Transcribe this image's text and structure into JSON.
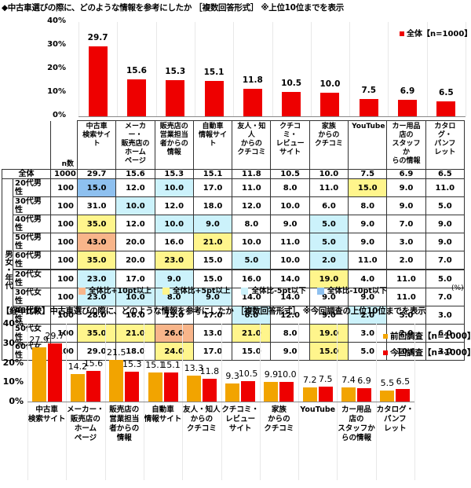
{
  "titles": {
    "top": "◆中古車選びの際に、どのような情報を参考にしたか ［複数回答形式］ ※上位10位までを表示",
    "bottom": "【経年比較】中古車選びの際に、どのような情報を参考にしたか ［複数回答形式］ ※今回調査の上位10位までを表示"
  },
  "colors": {
    "current": "#ee0000",
    "previous": "#f2a400",
    "p10": "#f8b58a",
    "p5": "#fff58c",
    "m5": "#ccf2fb",
    "m10": "#8ec0ef"
  },
  "chart_data": [
    {
      "type": "bar",
      "title": "中古車選びの際に、どのような情報を参考にしたか",
      "categories": [
        "中古車検索サイト",
        "メーカー・販売店のホームページ",
        "販売店の営業担当者からの情報",
        "自動車情報サイト",
        "友人・知人からのクチコミ",
        "クチコミ・レビューサイト",
        "家族からのクチコミ",
        "YouTube",
        "カー用品店のスタッフからの情報",
        "カタログ・パンフレット"
      ],
      "series": [
        {
          "name": "全体【n=1000】",
          "values": [
            29.7,
            15.6,
            15.3,
            15.1,
            11.8,
            10.5,
            10.0,
            7.5,
            6.9,
            6.5
          ]
        }
      ],
      "yticks": [
        "0%",
        "10%",
        "20%",
        "30%",
        "40%"
      ],
      "ylim": [
        0,
        40
      ],
      "legend_position": "top-right",
      "grid": "vertical separators"
    },
    {
      "type": "table",
      "columns": [
        "n数",
        "中古車検索サイト",
        "メーカー・販売店のホームページ",
        "販売店の営業担当者からの情報",
        "自動車情報サイト",
        "友人・知人からのクチコミ",
        "クチコミ・レビューサイト",
        "家族からのクチコミ",
        "YouTube",
        "カー用品店のスタッフからの情報",
        "カタログ・パンフレット"
      ],
      "group_label": "男女・年代",
      "rows": [
        {
          "label": "全体",
          "n": "1000",
          "values": [
            "29.7",
            "15.6",
            "15.3",
            "15.1",
            "11.8",
            "10.5",
            "10.0",
            "7.5",
            "6.9",
            "6.5"
          ],
          "hl": [
            "",
            "",
            "",
            "",
            "",
            "",
            "",
            "",
            "",
            ""
          ]
        },
        {
          "label": "20代男性",
          "n": "100",
          "values": [
            "15.0",
            "12.0",
            "10.0",
            "17.0",
            "11.0",
            "8.0",
            "11.0",
            "15.0",
            "9.0",
            "11.0"
          ],
          "hl": [
            "m10",
            "",
            "m5",
            "",
            "",
            "",
            "",
            "p5",
            "",
            ""
          ]
        },
        {
          "label": "30代男性",
          "n": "100",
          "values": [
            "31.0",
            "10.0",
            "12.0",
            "18.0",
            "12.0",
            "10.0",
            "6.0",
            "8.0",
            "9.0",
            "5.0"
          ],
          "hl": [
            "",
            "m5",
            "",
            "",
            "",
            "",
            "",
            "",
            "",
            ""
          ]
        },
        {
          "label": "40代男性",
          "n": "100",
          "values": [
            "35.0",
            "12.0",
            "10.0",
            "9.0",
            "8.0",
            "9.0",
            "5.0",
            "9.0",
            "7.0",
            "9.0"
          ],
          "hl": [
            "p5",
            "",
            "m5",
            "m5",
            "",
            "",
            "m5",
            "",
            "",
            ""
          ]
        },
        {
          "label": "50代男性",
          "n": "100",
          "values": [
            "43.0",
            "20.0",
            "16.0",
            "21.0",
            "10.0",
            "11.0",
            "5.0",
            "9.0",
            "3.0",
            "9.0"
          ],
          "hl": [
            "p10",
            "",
            "",
            "p5",
            "",
            "",
            "m5",
            "",
            "",
            ""
          ]
        },
        {
          "label": "60代男性",
          "n": "100",
          "values": [
            "35.0",
            "20.0",
            "23.0",
            "15.0",
            "5.0",
            "10.0",
            "2.0",
            "11.0",
            "2.0",
            "7.0"
          ],
          "hl": [
            "p5",
            "",
            "p5",
            "",
            "m5",
            "",
            "m5",
            "",
            "",
            ""
          ]
        },
        {
          "label": "20代女性",
          "n": "100",
          "values": [
            "23.0",
            "17.0",
            "9.0",
            "15.0",
            "16.0",
            "14.0",
            "19.0",
            "4.0",
            "11.0",
            "5.0"
          ],
          "hl": [
            "m5",
            "",
            "m5",
            "",
            "",
            "",
            "p5",
            "",
            "",
            ""
          ]
        },
        {
          "label": "30代女性",
          "n": "100",
          "values": [
            "23.0",
            "10.0",
            "8.0",
            "9.0",
            "14.0",
            "14.0",
            "9.0",
            "9.0",
            "11.0",
            "7.0"
          ],
          "hl": [
            "m5",
            "m5",
            "m5",
            "m5",
            "",
            "",
            "",
            "",
            "",
            ""
          ]
        },
        {
          "label": "40代女性",
          "n": "100",
          "values": [
            "28.0",
            "16.0",
            "15.0",
            "17.0",
            "6.0",
            "12.0",
            "9.0",
            "2.0",
            "5.0",
            "3.0"
          ],
          "hl": [
            "",
            "",
            "",
            "",
            "m5",
            "",
            "",
            "m5",
            "",
            ""
          ]
        },
        {
          "label": "50代女性",
          "n": "100",
          "values": [
            "35.0",
            "21.0",
            "26.0",
            "13.0",
            "21.0",
            "8.0",
            "19.0",
            "3.0",
            "2.0",
            "6.0"
          ],
          "hl": [
            "p5",
            "p5",
            "p10",
            "",
            "p5",
            "",
            "p5",
            "",
            "",
            ""
          ]
        },
        {
          "label": "60代女性",
          "n": "100",
          "values": [
            "29.0",
            "18.0",
            "24.0",
            "17.0",
            "15.0",
            "9.0",
            "15.0",
            "5.0",
            "10.0",
            "3.0"
          ],
          "hl": [
            "",
            "",
            "p5",
            "",
            "",
            "",
            "p5",
            "",
            "",
            ""
          ]
        }
      ],
      "legend": [
        "全体比+10pt以上",
        "全体比+5pt以上",
        "全体比-5pt以下",
        "全体比-10pt以下"
      ],
      "unit": "(%)"
    },
    {
      "type": "bar",
      "title": "【経年比較】中古車選びの際に、どのような情報を参考にしたか",
      "categories": [
        "中古車検索サイト",
        "メーカー・販売店のホームページ",
        "販売店の営業担当者からの情報",
        "自動車情報サイト",
        "友人・知人からのクチコミ",
        "クチコミ・レビューサイト",
        "家族からのクチコミ",
        "YouTube",
        "カー用品店のスタッフからの情報",
        "カタログ・パンフレット"
      ],
      "series": [
        {
          "name": "前回調査【n=1000】",
          "values": [
            27.9,
            14.2,
            21.5,
            15.1,
            13.3,
            9.3,
            9.9,
            7.2,
            7.4,
            5.5
          ]
        },
        {
          "name": "今回調査【n=1000】",
          "values": [
            29.7,
            15.6,
            15.3,
            15.1,
            11.8,
            10.5,
            10.0,
            7.5,
            6.9,
            6.5
          ]
        }
      ],
      "yticks": [
        "0%",
        "10%",
        "20%",
        "30%",
        "40%"
      ],
      "ylim": [
        0,
        40
      ],
      "legend_position": "top-right"
    }
  ],
  "table_header_lines": [
    [
      "中古車",
      "検索サイト"
    ],
    [
      "メーカー・",
      "販売店の",
      "ホーム",
      "ページ"
    ],
    [
      "販売店の",
      "営業担当",
      "者からの",
      "情報"
    ],
    [
      "自動車",
      "情報サイト"
    ],
    [
      "友人・知人",
      "からの",
      "クチコミ"
    ],
    [
      "クチコミ・",
      "レビュー",
      "サイト"
    ],
    [
      "家族",
      "からの",
      "クチコミ"
    ],
    [
      "YouTube"
    ],
    [
      "カー用品",
      "店の",
      "スタッフか",
      "らの情報"
    ],
    [
      "カタログ・",
      "パンフ",
      "レット"
    ]
  ],
  "bottom_xlabels": [
    [
      "中古車",
      "検索サイト"
    ],
    [
      "メーカー・",
      "販売店の",
      "ホーム",
      "ページ"
    ],
    [
      "販売店の",
      "営業担当",
      "者からの",
      "情報"
    ],
    [
      "自動車",
      "情報サイト"
    ],
    [
      "友人・知人",
      "からの",
      "クチコミ"
    ],
    [
      "クチコミ・",
      "レビュー",
      "サイト"
    ],
    [
      "家族",
      "からの",
      "クチコミ"
    ],
    [
      "YouTube"
    ],
    [
      "カー用品",
      "店の",
      "スタッフか",
      "らの情報"
    ],
    [
      "カタログ・",
      "パンフ",
      "レット"
    ]
  ]
}
